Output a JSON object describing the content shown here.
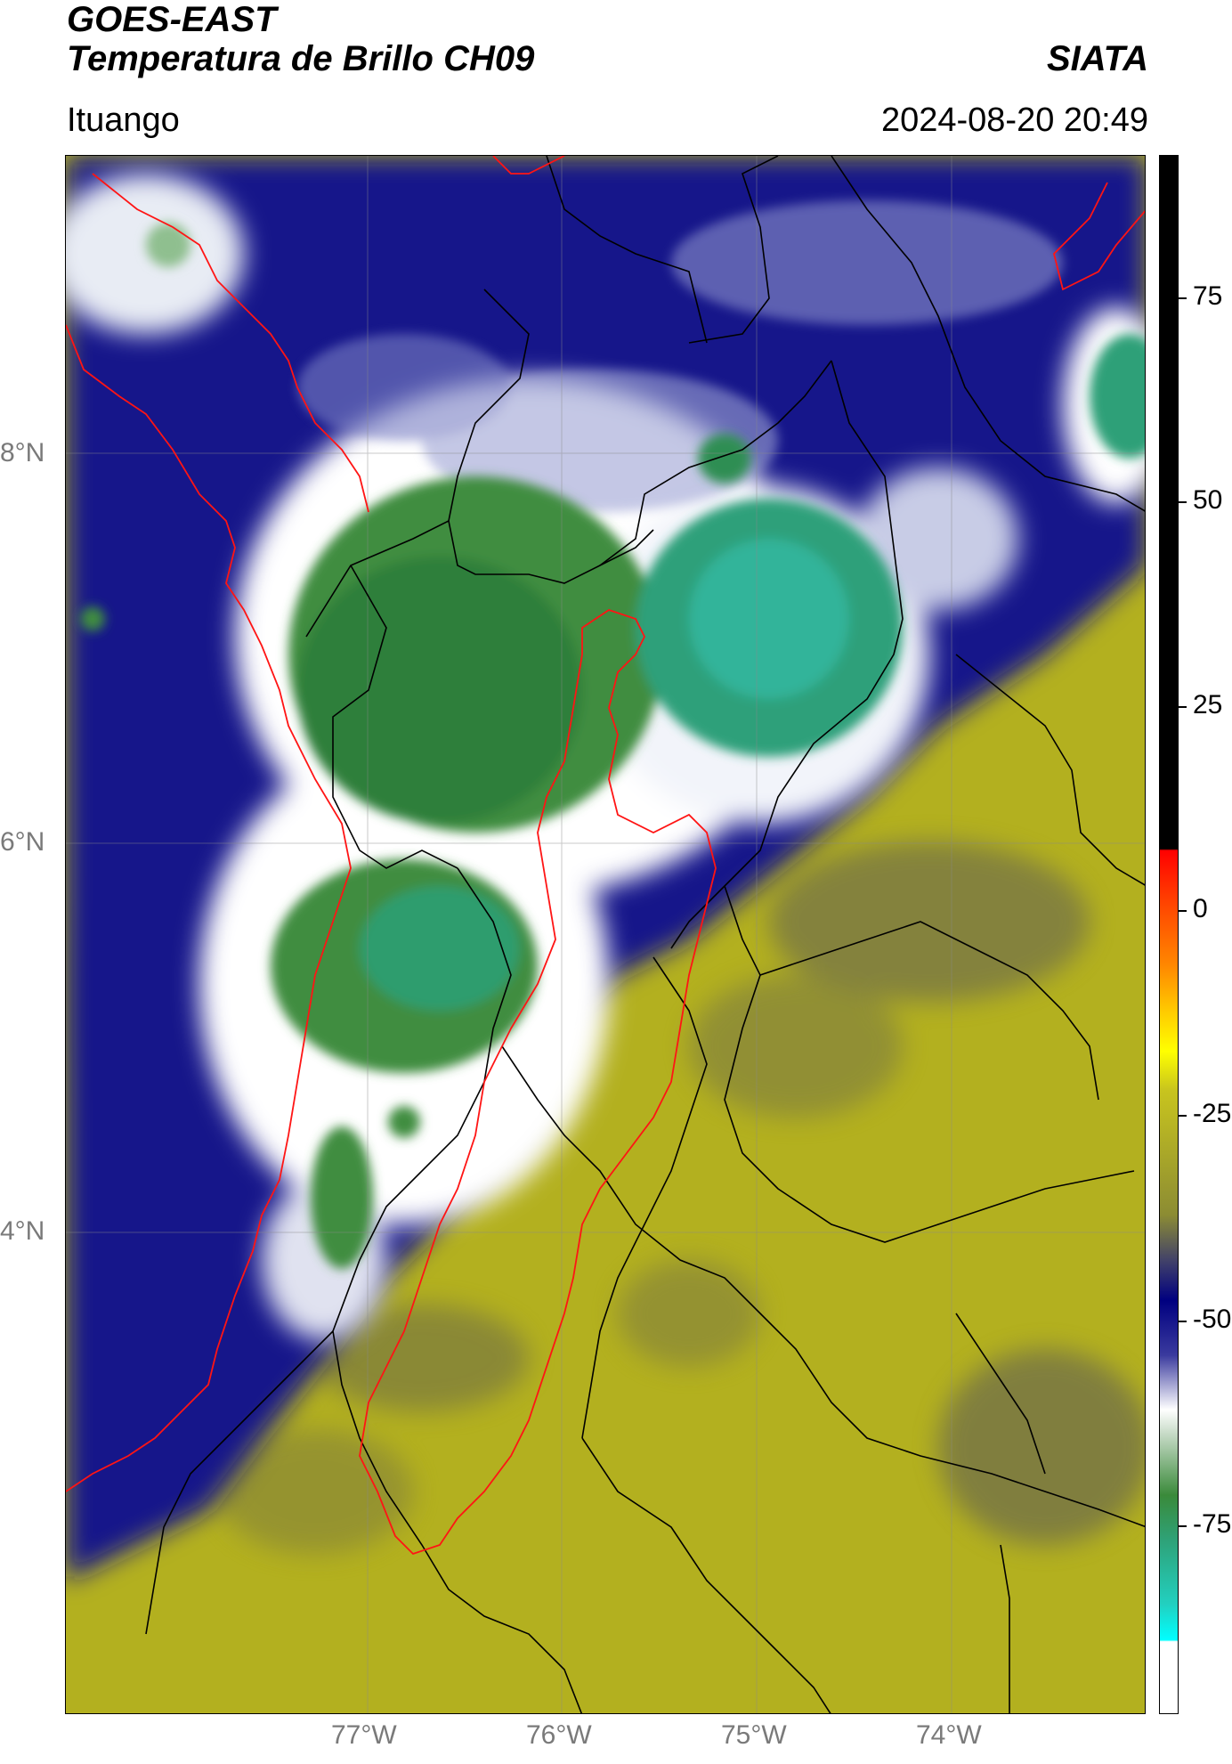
{
  "header": {
    "title_line1": "GOES-EAST",
    "title_line2": "Temperatura de Brillo CH09",
    "org": "SIATA",
    "location": "Ituango",
    "datetime": "2024-08-20 20:49"
  },
  "map": {
    "lat_labels": [
      "8°N",
      "6°N",
      "4°N"
    ],
    "lon_labels": [
      "77°W",
      "76°W",
      "75°W",
      "74°W"
    ],
    "colors": {
      "background_warm": "#b5b420",
      "cold_dark_blue": "#0a0a80",
      "very_cold_white": "#ffffff",
      "coldest_green": "#3f8f3f",
      "coldest_teal": "#2aa882",
      "boundary_red": "#ff0000",
      "boundary_black": "#000000"
    }
  },
  "colorbar": {
    "tick_labels": [
      "75",
      "50",
      "25",
      "0",
      "-25",
      "-50",
      "-75"
    ]
  }
}
